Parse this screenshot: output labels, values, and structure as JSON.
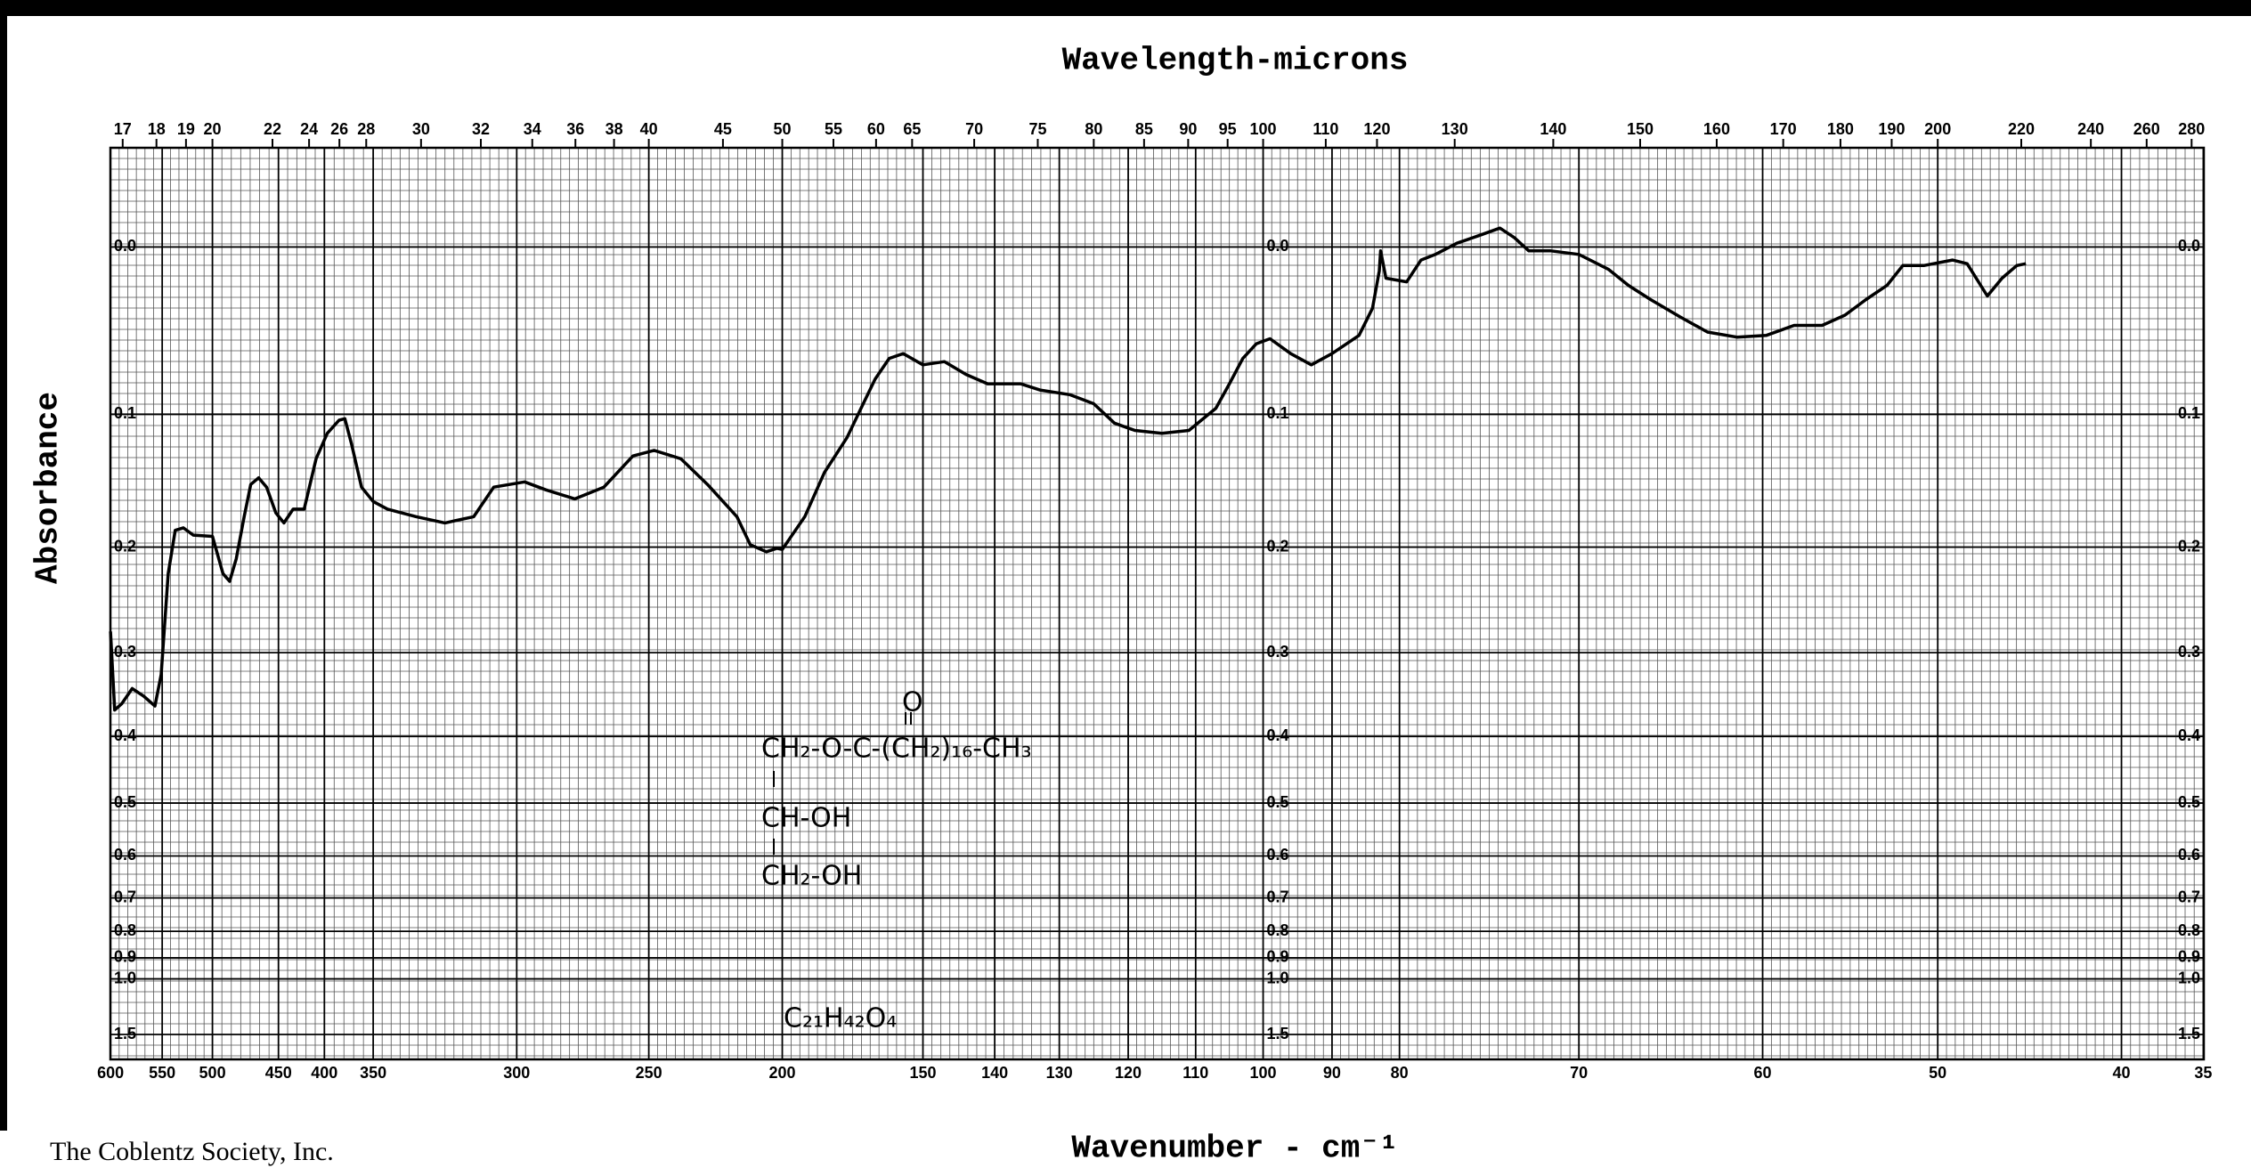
{
  "chart_data": {
    "type": "line",
    "title": "Wavelength-microns",
    "xlabel": "Wavenumber - cm⁻¹",
    "ylabel": "Absorbance",
    "color": "#000000",
    "grid": true,
    "xlim": [
      600,
      35
    ],
    "xticks": [
      600,
      550,
      500,
      450,
      400,
      350,
      300,
      250,
      200,
      150,
      140,
      130,
      120,
      110,
      100,
      90,
      80,
      70,
      60,
      50,
      40,
      35
    ],
    "x2ticks": [
      17,
      18,
      19,
      20,
      22,
      24,
      26,
      28,
      30,
      32,
      34,
      36,
      38,
      40,
      45,
      50,
      55,
      60,
      65,
      70,
      75,
      80,
      85,
      90,
      95,
      100,
      110,
      120,
      130,
      140,
      150,
      160,
      170,
      180,
      190,
      200,
      220,
      240,
      260,
      280
    ],
    "ylim": [
      -0.05,
      3
    ],
    "yticks": [
      {
        "value": 0,
        "label": "0.0"
      },
      0.1,
      0.2,
      0.3,
      0.4,
      0.5,
      0.6,
      0.7,
      0.8,
      0.9,
      {
        "value": 1,
        "label": "1.0"
      },
      1.5
    ],
    "x": [
      600,
      596,
      589,
      579,
      568,
      557,
      551,
      544,
      537,
      529,
      519,
      500,
      492,
      487,
      482,
      476,
      471,
      465,
      459,
      452,
      444,
      434,
      422,
      409,
      397,
      385,
      379,
      372,
      362,
      350,
      345,
      335,
      325,
      315,
      308,
      297,
      289,
      278,
      267,
      256,
      248,
      238,
      228,
      217,
      212,
      206,
      202,
      200,
      192,
      185,
      177,
      172,
      167,
      162,
      157,
      150,
      147,
      144,
      141,
      136,
      133,
      128.5,
      125,
      122,
      119,
      115,
      111,
      107,
      105,
      103,
      101,
      99,
      96,
      93,
      90,
      86,
      84,
      83,
      82.8,
      82,
      79.6,
      78.8,
      78,
      76.8,
      75.6,
      74.4,
      73.6,
      72.8,
      71.6,
      70,
      68.4,
      67.3,
      66.1,
      64.5,
      63,
      61.4,
      59.8,
      58.2,
      56.6,
      55.3,
      54.1,
      52.9,
      52,
      50.8,
      49.2,
      48.4,
      47.3,
      46.5,
      45.7,
      45.2
    ],
    "values": [
      0.278,
      0.366,
      0.358,
      0.34,
      0.349,
      0.361,
      0.324,
      0.223,
      0.186,
      0.184,
      0.19,
      0.191,
      0.223,
      0.23,
      0.21,
      0.175,
      0.15,
      0.145,
      0.152,
      0.172,
      0.18,
      0.169,
      0.169,
      0.131,
      0.113,
      0.104,
      0.103,
      0.121,
      0.152,
      0.163,
      0.169,
      0.175,
      0.18,
      0.175,
      0.152,
      0.148,
      0.154,
      0.161,
      0.152,
      0.129,
      0.125,
      0.131,
      0.15,
      0.175,
      0.198,
      0.204,
      0.201,
      0.202,
      0.175,
      0.141,
      0.116,
      0.096,
      0.077,
      0.064,
      0.061,
      0.068,
      0.066,
      0.074,
      0.08,
      0.08,
      0.084,
      0.087,
      0.093,
      0.106,
      0.111,
      0.113,
      0.111,
      0.096,
      0.08,
      0.064,
      0.055,
      0.052,
      0.061,
      0.068,
      0.061,
      0.05,
      0.034,
      0.013,
      0.002,
      0.017,
      0.019,
      0.007,
      0.004,
      -0.002,
      -0.006,
      -0.01,
      -0.005,
      0.002,
      0.002,
      0.004,
      0.012,
      0.021,
      0.029,
      0.039,
      0.048,
      0.051,
      0.05,
      0.044,
      0.044,
      0.038,
      0.029,
      0.021,
      0.01,
      0.01,
      0.007,
      0.009,
      0.027,
      0.017,
      0.01,
      0.009
    ],
    "annotations": [
      "O",
      "CH₂-O-C-(CH₂)₁₆-CH₃",
      "CH-OH",
      "CH₂-OH",
      "C₂₁H₄₂O₄"
    ],
    "credit": "The Coblentz Society, Inc."
  }
}
